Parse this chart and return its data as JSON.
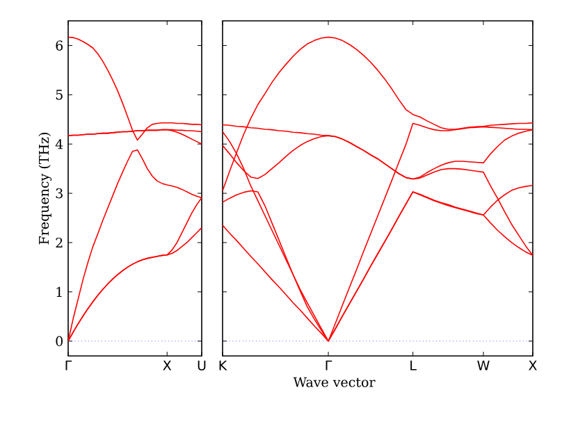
{
  "chart_data": [
    {
      "type": "line",
      "ylabel": "Frequency (THz)",
      "ylim": [
        -0.3,
        6.5
      ],
      "yticks": [
        0,
        1,
        2,
        3,
        4,
        5,
        6
      ],
      "categories": [
        "Γ",
        null,
        null,
        null,
        null,
        null,
        null,
        null,
        null,
        null,
        null,
        null,
        null,
        null,
        null,
        null,
        null,
        null,
        null,
        null,
        "X",
        null,
        null,
        null,
        null,
        null,
        null,
        "U"
      ],
      "ref_lines": [
        {
          "axis": "y",
          "value": 0,
          "color": "#0000ff",
          "line_style": "dotted"
        }
      ],
      "series": [
        {
          "color": "#ff0000",
          "values": [
            6.17,
            6.16,
            6.13,
            6.08,
            6.02,
            5.95,
            5.83,
            5.68,
            5.5,
            5.3,
            5.08,
            4.83,
            4.56,
            4.28,
            4.08,
            4.2,
            4.33,
            4.4,
            4.42,
            4.43,
            4.43,
            4.43,
            4.42,
            4.42,
            4.41,
            4.4,
            4.4,
            4.39
          ]
        },
        {
          "color": "#ff0000",
          "values": [
            4.17,
            4.18,
            4.18,
            4.19,
            4.2,
            4.2,
            4.21,
            4.22,
            4.22,
            4.23,
            4.24,
            4.25,
            4.25,
            4.26,
            4.27,
            4.27,
            4.28,
            4.28,
            4.28,
            4.29,
            4.29,
            4.29,
            4.28,
            4.28,
            4.27,
            4.27,
            4.26,
            4.25
          ]
        },
        {
          "color": "#ff0000",
          "values": [
            4.17,
            4.18,
            4.18,
            4.19,
            4.2,
            4.2,
            4.21,
            4.22,
            4.22,
            4.23,
            4.24,
            4.25,
            4.25,
            4.26,
            4.27,
            4.27,
            4.28,
            4.28,
            4.28,
            4.29,
            4.29,
            4.27,
            4.24,
            4.2,
            4.15,
            4.1,
            4.05,
            4.0
          ]
        },
        {
          "color": "#ff0000",
          "values": [
            0,
            0.45,
            0.85,
            1.25,
            1.6,
            1.92,
            2.18,
            2.45,
            2.7,
            2.95,
            3.2,
            3.43,
            3.65,
            3.85,
            3.88,
            3.7,
            3.5,
            3.35,
            3.25,
            3.2,
            3.17,
            3.15,
            3.12,
            3.08,
            3.03,
            2.98,
            2.94,
            2.91
          ]
        },
        {
          "color": "#ff0000",
          "values": [
            0,
            0.18,
            0.35,
            0.51,
            0.66,
            0.8,
            0.93,
            1.05,
            1.16,
            1.26,
            1.35,
            1.43,
            1.5,
            1.56,
            1.61,
            1.65,
            1.68,
            1.7,
            1.72,
            1.74,
            1.75,
            1.78,
            1.84,
            1.92,
            2.0,
            2.1,
            2.2,
            2.3
          ]
        },
        {
          "color": "#ff0000",
          "values": [
            0,
            0.18,
            0.35,
            0.51,
            0.66,
            0.8,
            0.93,
            1.05,
            1.16,
            1.26,
            1.35,
            1.43,
            1.5,
            1.56,
            1.61,
            1.65,
            1.68,
            1.7,
            1.72,
            1.74,
            1.75,
            1.85,
            2.0,
            2.2,
            2.4,
            2.6,
            2.77,
            2.91
          ]
        }
      ]
    },
    {
      "type": "line",
      "xlabel": "Wave vector",
      "ylim": [
        -0.3,
        6.5
      ],
      "yticks": [
        0,
        1,
        2,
        3,
        4,
        5,
        6
      ],
      "tick_labels": "x",
      "categories": [
        "K",
        null,
        null,
        null,
        null,
        null,
        null,
        null,
        null,
        null,
        null,
        null,
        null,
        null,
        null,
        "Γ",
        null,
        null,
        null,
        null,
        null,
        null,
        null,
        null,
        null,
        null,
        null,
        "L",
        null,
        null,
        null,
        null,
        null,
        null,
        null,
        null,
        null,
        "W",
        null,
        null,
        null,
        null,
        null,
        null,
        "X"
      ],
      "ref_lines": [
        {
          "axis": "y",
          "value": 0,
          "color": "#0000ff",
          "line_style": "dotted"
        }
      ],
      "series": [
        {
          "color": "#ff0000",
          "values": [
            4.39,
            4.38,
            4.36,
            4.35,
            4.33,
            4.32,
            4.3,
            4.29,
            4.27,
            4.26,
            4.24,
            4.23,
            4.21,
            4.2,
            4.18,
            4.17,
            4.15,
            4.1,
            4.03,
            3.95,
            3.87,
            3.78,
            3.7,
            3.6,
            3.5,
            3.4,
            3.32,
            3.29,
            3.33,
            3.42,
            3.5,
            3.57,
            3.62,
            3.65,
            3.65,
            3.64,
            3.63,
            3.62,
            3.8,
            3.95,
            4.08,
            4.16,
            4.22,
            4.26,
            4.29
          ]
        },
        {
          "color": "#ff0000",
          "values": [
            3.97,
            3.8,
            3.62,
            3.46,
            3.33,
            3.3,
            3.38,
            3.5,
            3.62,
            3.75,
            3.87,
            3.97,
            4.05,
            4.11,
            4.15,
            4.17,
            4.15,
            4.1,
            4.03,
            3.95,
            3.87,
            3.78,
            3.7,
            3.6,
            3.5,
            3.4,
            3.32,
            3.29,
            3.31,
            3.37,
            3.43,
            3.48,
            3.5,
            3.5,
            3.49,
            3.47,
            3.45,
            3.43,
            3.15,
            2.9,
            2.63,
            2.37,
            2.15,
            1.93,
            1.74
          ]
        },
        {
          "color": "#ff0000",
          "values": [
            3.05,
            3.45,
            3.83,
            4.2,
            4.52,
            4.8,
            5.02,
            5.25,
            5.45,
            5.62,
            5.78,
            5.92,
            6.03,
            6.1,
            6.15,
            6.17,
            6.15,
            6.1,
            6.02,
            5.92,
            5.8,
            5.66,
            5.5,
            5.32,
            5.12,
            4.9,
            4.7,
            4.6,
            4.55,
            4.47,
            4.4,
            4.33,
            4.3,
            4.3,
            4.32,
            4.34,
            4.35,
            4.36,
            4.38,
            4.39,
            4.4,
            4.41,
            4.42,
            4.42,
            4.43
          ]
        },
        {
          "color": "#ff0000",
          "values": [
            4.25,
            4.05,
            3.8,
            3.5,
            3.15,
            2.85,
            2.55,
            2.25,
            1.95,
            1.65,
            1.35,
            1.05,
            0.78,
            0.52,
            0.26,
            0,
            0.36,
            0.73,
            1.09,
            1.45,
            1.82,
            2.18,
            2.54,
            2.9,
            3.26,
            3.63,
            3.99,
            4.42,
            4.38,
            4.33,
            4.29,
            4.27,
            4.27,
            4.29,
            4.31,
            4.33,
            4.34,
            4.35,
            4.34,
            4.33,
            4.32,
            4.31,
            4.3,
            4.3,
            4.29
          ]
        },
        {
          "color": "#ff0000",
          "values": [
            2.82,
            2.9,
            2.97,
            3.02,
            3.05,
            3.03,
            2.75,
            2.4,
            2.05,
            1.7,
            1.35,
            1.02,
            0.7,
            0.45,
            0.22,
            0,
            0.25,
            0.51,
            0.76,
            1.01,
            1.26,
            1.52,
            1.77,
            2.02,
            2.27,
            2.53,
            2.78,
            3.03,
            2.98,
            2.92,
            2.86,
            2.81,
            2.77,
            2.72,
            2.68,
            2.64,
            2.6,
            2.56,
            2.72,
            2.86,
            2.97,
            3.06,
            3.11,
            3.14,
            3.16
          ]
        },
        {
          "color": "#ff0000",
          "values": [
            2.35,
            2.19,
            2.04,
            1.88,
            1.72,
            1.57,
            1.41,
            1.25,
            1.1,
            0.94,
            0.78,
            0.63,
            0.47,
            0.31,
            0.16,
            0,
            0.25,
            0.51,
            0.76,
            1.01,
            1.26,
            1.52,
            1.77,
            2.02,
            2.27,
            2.53,
            2.78,
            3.03,
            2.97,
            2.91,
            2.85,
            2.8,
            2.75,
            2.71,
            2.67,
            2.63,
            2.59,
            2.56,
            2.4,
            2.25,
            2.12,
            2.0,
            1.9,
            1.81,
            1.74
          ]
        }
      ]
    }
  ]
}
